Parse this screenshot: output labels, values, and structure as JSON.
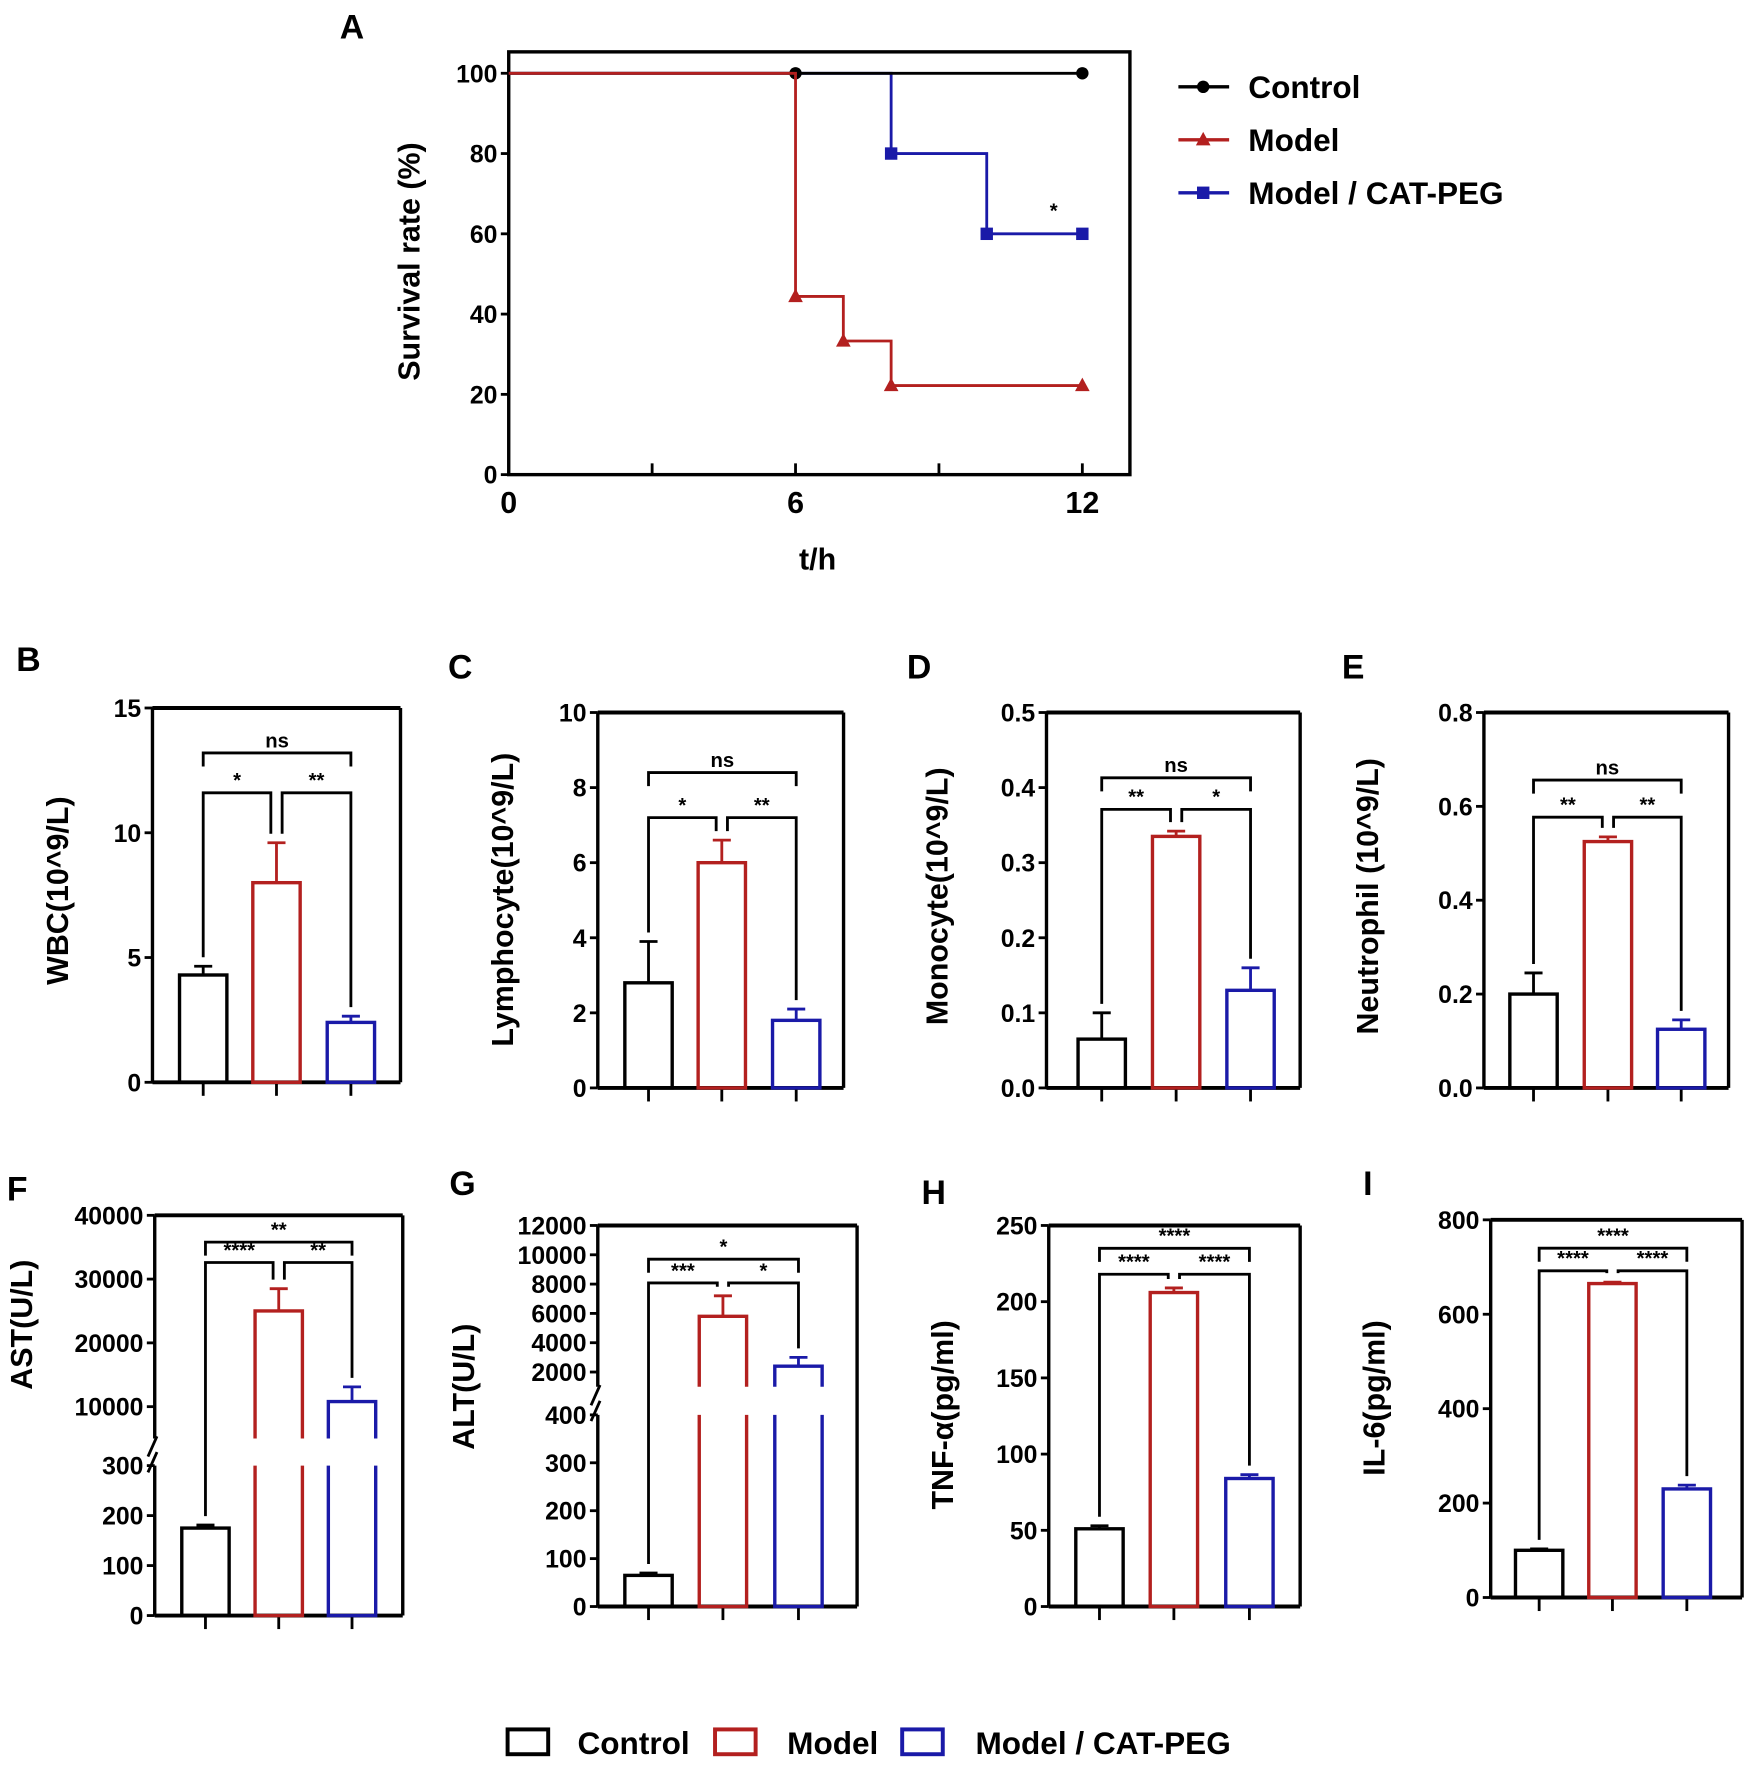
{
  "colors": {
    "control": "#000000",
    "model": "#b3201f",
    "catpeg": "#1a1aa8"
  },
  "legend": {
    "items": [
      "Control",
      "Model",
      "Model / CAT-PEG"
    ]
  },
  "chart_data": [
    {
      "panel": "A",
      "type": "line",
      "xlabel": "t/h",
      "ylabel": "Survival rate (%)",
      "xlim": [
        0,
        13
      ],
      "ylim": [
        0,
        105
      ],
      "xticks": [
        "0",
        "6",
        "12"
      ],
      "yticks": [
        "0",
        "20",
        "40",
        "60",
        "80",
        "100"
      ],
      "series": [
        {
          "name": "Model / CAT-PEG",
          "color": "#1a1aa8",
          "marker": "square",
          "steps": [
            [
              0,
              100
            ],
            [
              8,
              80
            ],
            [
              10,
              60
            ],
            [
              12,
              60
            ]
          ],
          "markers": [
            [
              8,
              80
            ],
            [
              10,
              60
            ],
            [
              12,
              60
            ]
          ]
        },
        {
          "name": "Control",
          "color": "#000000",
          "marker": "circle",
          "steps": [
            [
              0,
              100
            ],
            [
              12,
              100
            ]
          ],
          "markers": [
            [
              6,
              100
            ],
            [
              12,
              100
            ]
          ]
        },
        {
          "name": "Model",
          "color": "#b3201f",
          "marker": "triangle",
          "steps": [
            [
              0,
              100
            ],
            [
              6,
              44.4
            ],
            [
              7,
              33.3
            ],
            [
              8,
              22.2
            ],
            [
              12,
              22.2
            ]
          ],
          "markers": [
            [
              6,
              44.4
            ],
            [
              7,
              33.3
            ],
            [
              8,
              22.2
            ],
            [
              12,
              22.2
            ]
          ]
        }
      ],
      "legend_order": [
        "Control",
        "Model",
        "Model / CAT-PEG"
      ],
      "annotations": [
        {
          "text": "*",
          "x": 11.4,
          "y": 63
        }
      ]
    },
    {
      "panel": "B",
      "type": "bar",
      "ylabel": "WBC(10^9/L)",
      "ylim": [
        0,
        15
      ],
      "yticks": [
        "0",
        "5",
        "10",
        "15"
      ],
      "categories": [
        "Control",
        "Model",
        "Model / CAT-PEG"
      ],
      "values": [
        4.3,
        8.0,
        2.4
      ],
      "errors": [
        0.35,
        1.6,
        0.25
      ],
      "significance": [
        {
          "pair": [
            0,
            1
          ],
          "label": "*",
          "y": 11.6
        },
        {
          "pair": [
            1,
            2
          ],
          "label": "**",
          "y": 11.6
        },
        {
          "pair": [
            0,
            2
          ],
          "label": "ns",
          "y": 13.2
        }
      ]
    },
    {
      "panel": "C",
      "type": "bar",
      "ylabel": "Lymphocyte(10^9/L)",
      "ylim": [
        0,
        10
      ],
      "yticks": [
        "0",
        "2",
        "4",
        "6",
        "8",
        "10"
      ],
      "categories": [
        "Control",
        "Model",
        "Model / CAT-PEG"
      ],
      "values": [
        2.8,
        6.0,
        1.8
      ],
      "errors": [
        1.1,
        0.6,
        0.3
      ],
      "significance": [
        {
          "pair": [
            0,
            1
          ],
          "label": "*",
          "y": 7.2
        },
        {
          "pair": [
            1,
            2
          ],
          "label": "**",
          "y": 7.2
        },
        {
          "pair": [
            0,
            2
          ],
          "label": "ns",
          "y": 8.4
        }
      ]
    },
    {
      "panel": "D",
      "type": "bar",
      "ylabel": "Monocyte(10^9/L)",
      "ylim": [
        0,
        0.5
      ],
      "yticks": [
        "0.0",
        "0.1",
        "0.2",
        "0.3",
        "0.4",
        "0.5"
      ],
      "categories": [
        "Control",
        "Model",
        "Model / CAT-PEG"
      ],
      "values": [
        0.065,
        0.335,
        0.13
      ],
      "errors": [
        0.035,
        0.007,
        0.03
      ],
      "significance": [
        {
          "pair": [
            0,
            1
          ],
          "label": "**",
          "y": 0.371
        },
        {
          "pair": [
            1,
            2
          ],
          "label": "*",
          "y": 0.371
        },
        {
          "pair": [
            0,
            2
          ],
          "label": "ns",
          "y": 0.413
        }
      ]
    },
    {
      "panel": "E",
      "type": "bar",
      "ylabel": "Neutrophil (10^9/L)",
      "ylim": [
        0,
        0.8
      ],
      "yticks": [
        "0.0",
        "0.2",
        "0.4",
        "0.6",
        "0.8"
      ],
      "categories": [
        "Control",
        "Model",
        "Model / CAT-PEG"
      ],
      "values": [
        0.2,
        0.525,
        0.125
      ],
      "errors": [
        0.045,
        0.01,
        0.02
      ],
      "significance": [
        {
          "pair": [
            0,
            1
          ],
          "label": "**",
          "y": 0.577
        },
        {
          "pair": [
            1,
            2
          ],
          "label": "**",
          "y": 0.577
        },
        {
          "pair": [
            0,
            2
          ],
          "label": "ns",
          "y": 0.656
        }
      ]
    },
    {
      "panel": "F",
      "type": "bar",
      "ylabel": "AST(U/L)",
      "ylim": [
        0,
        40000
      ],
      "axis_break": [
        300,
        5000
      ],
      "yticks": [
        "0",
        "100",
        "200",
        "300",
        "10000",
        "20000",
        "30000",
        "40000"
      ],
      "categories": [
        "Control",
        "Model",
        "Model / CAT-PEG"
      ],
      "values": [
        175,
        25000,
        10800
      ],
      "errors": [
        6,
        3500,
        2300
      ],
      "significance": [
        {
          "pair": [
            0,
            1
          ],
          "label": "****",
          "y": 32600
        },
        {
          "pair": [
            1,
            2
          ],
          "label": "**",
          "y": 32600
        },
        {
          "pair": [
            0,
            2
          ],
          "label": "**",
          "y": 35800
        }
      ]
    },
    {
      "panel": "G",
      "type": "bar",
      "ylabel": "ALT(U/L)",
      "ylim": [
        0,
        12000
      ],
      "axis_break": [
        400,
        1000
      ],
      "yticks": [
        "0",
        "100",
        "200",
        "300",
        "400",
        "2000",
        "4000",
        "6000",
        "8000",
        "10000",
        "12000"
      ],
      "categories": [
        "Control",
        "Model",
        "Model / CAT-PEG"
      ],
      "values": [
        65,
        5800,
        2400
      ],
      "errors": [
        5,
        1400,
        600
      ],
      "significance": [
        {
          "pair": [
            0,
            1
          ],
          "label": "***",
          "y": 8080
        },
        {
          "pair": [
            1,
            2
          ],
          "label": "*",
          "y": 8080
        },
        {
          "pair": [
            0,
            2
          ],
          "label": "*",
          "y": 9700
        }
      ]
    },
    {
      "panel": "H",
      "type": "bar",
      "ylabel": "TNF-α(pg/ml)",
      "ylim": [
        0,
        250
      ],
      "yticks": [
        "0",
        "50",
        "100",
        "150",
        "200",
        "250"
      ],
      "categories": [
        "Control",
        "Model",
        "Model / CAT-PEG"
      ],
      "values": [
        51,
        206,
        84
      ],
      "errors": [
        2,
        3,
        2.5
      ],
      "significance": [
        {
          "pair": [
            0,
            1
          ],
          "label": "****",
          "y": 218
        },
        {
          "pair": [
            1,
            2
          ],
          "label": "****",
          "y": 218
        },
        {
          "pair": [
            0,
            2
          ],
          "label": "****",
          "y": 235
        }
      ]
    },
    {
      "panel": "I",
      "type": "bar",
      "ylabel": "IL-6(pg/ml)",
      "ylim": [
        0,
        800
      ],
      "yticks": [
        "0",
        "200",
        "400",
        "600",
        "800"
      ],
      "categories": [
        "Control",
        "Model",
        "Model / CAT-PEG"
      ],
      "values": [
        100,
        665,
        230
      ],
      "errors": [
        3,
        3,
        8
      ],
      "significance": [
        {
          "pair": [
            0,
            1
          ],
          "label": "****",
          "y": 692
        },
        {
          "pair": [
            1,
            2
          ],
          "label": "****",
          "y": 692
        },
        {
          "pair": [
            0,
            2
          ],
          "label": "****",
          "y": 740
        }
      ]
    }
  ]
}
